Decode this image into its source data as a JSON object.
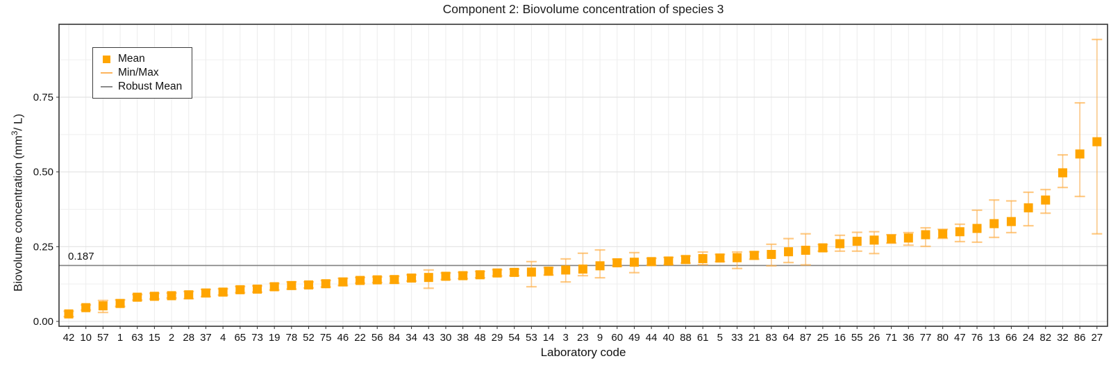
{
  "title": "Component 2: Biovolume concentration of species 3",
  "axes": {
    "x_label": "Laboratory code",
    "y_label_prefix": "Biovolume concentration  (mm",
    "y_label_sup": "3",
    "y_label_suffix": "/ L)",
    "y_tick_labels": [
      "0.00",
      "0.25",
      "0.50",
      "0.75"
    ],
    "y_tick_values": [
      0,
      0.25,
      0.5,
      0.75
    ],
    "y_minor_values": [
      0.125,
      0.375,
      0.625,
      0.875
    ]
  },
  "legend": {
    "items": [
      {
        "label": "Mean",
        "type": "square",
        "color": "#FFA500"
      },
      {
        "label": "Min/Max",
        "type": "line",
        "color": "#FDB45C"
      },
      {
        "label": "Robust Mean",
        "type": "line",
        "color": "#8a8a8a"
      }
    ]
  },
  "robust_mean": {
    "value": 0.187,
    "label": "0.187"
  },
  "colors": {
    "mean_point": "#FFA500",
    "minmax_bar": "rgba(255,170,60,0.55)",
    "minmax_cap": "rgba(255,175,70,0.65)",
    "robust_line": "#808080",
    "grid_major": "#e3e3e3",
    "grid_minor": "#efefef",
    "grid_vertical": "#ececec",
    "panel_border": "#333333",
    "tick": "#333333",
    "text": "#111111"
  },
  "chart_data": {
    "type": "scatter",
    "title": "Component 2: Biovolume concentration of species 3",
    "xlabel": "Laboratory code",
    "ylabel": "Biovolume concentration (mm3/ L)",
    "ylim": [
      0,
      0.99
    ],
    "grid": true,
    "legend_position": "top-left",
    "robust_mean": 0.187,
    "categories": [
      "42",
      "10",
      "57",
      "1",
      "63",
      "15",
      "2",
      "28",
      "37",
      "4",
      "65",
      "73",
      "19",
      "78",
      "52",
      "75",
      "46",
      "22",
      "56",
      "84",
      "34",
      "43",
      "30",
      "38",
      "48",
      "29",
      "54",
      "53",
      "14",
      "3",
      "23",
      "9",
      "60",
      "49",
      "44",
      "40",
      "88",
      "61",
      "5",
      "33",
      "21",
      "83",
      "64",
      "87",
      "25",
      "16",
      "55",
      "26",
      "71",
      "36",
      "77",
      "80",
      "47",
      "76",
      "13",
      "66",
      "24",
      "82",
      "32",
      "86",
      "27"
    ],
    "series": [
      {
        "name": "Mean",
        "values": [
          0.025,
          0.046,
          0.052,
          0.06,
          0.081,
          0.084,
          0.086,
          0.089,
          0.095,
          0.098,
          0.106,
          0.108,
          0.116,
          0.12,
          0.122,
          0.126,
          0.132,
          0.137,
          0.139,
          0.14,
          0.145,
          0.147,
          0.151,
          0.153,
          0.156,
          0.162,
          0.164,
          0.165,
          0.168,
          0.172,
          0.175,
          0.186,
          0.196,
          0.198,
          0.2,
          0.202,
          0.207,
          0.21,
          0.212,
          0.213,
          0.221,
          0.224,
          0.233,
          0.238,
          0.246,
          0.26,
          0.268,
          0.272,
          0.276,
          0.279,
          0.29,
          0.293,
          0.3,
          0.311,
          0.327,
          0.334,
          0.38,
          0.406,
          0.497,
          0.56,
          0.601
        ]
      },
      {
        "name": "Min",
        "values": [
          0.016,
          0.038,
          0.03,
          0.05,
          0.071,
          0.075,
          0.078,
          0.076,
          0.083,
          0.088,
          0.096,
          0.098,
          0.105,
          0.108,
          0.112,
          0.115,
          0.12,
          0.128,
          0.13,
          0.128,
          0.135,
          0.111,
          0.14,
          0.143,
          0.146,
          0.152,
          0.153,
          0.116,
          0.155,
          0.132,
          0.153,
          0.146,
          0.185,
          0.163,
          0.188,
          0.19,
          0.195,
          0.19,
          0.2,
          0.177,
          0.208,
          0.186,
          0.197,
          0.189,
          0.235,
          0.235,
          0.235,
          0.227,
          0.262,
          0.255,
          0.251,
          0.278,
          0.267,
          0.265,
          0.281,
          0.297,
          0.32,
          0.362,
          0.448,
          0.418,
          0.293
        ]
      },
      {
        "name": "Max",
        "values": [
          0.034,
          0.055,
          0.07,
          0.072,
          0.09,
          0.094,
          0.095,
          0.1,
          0.107,
          0.109,
          0.117,
          0.119,
          0.127,
          0.132,
          0.132,
          0.137,
          0.144,
          0.147,
          0.149,
          0.151,
          0.156,
          0.172,
          0.162,
          0.164,
          0.167,
          0.173,
          0.175,
          0.2,
          0.18,
          0.209,
          0.228,
          0.239,
          0.208,
          0.23,
          0.211,
          0.214,
          0.219,
          0.232,
          0.224,
          0.232,
          0.233,
          0.258,
          0.277,
          0.293,
          0.257,
          0.288,
          0.298,
          0.3,
          0.29,
          0.297,
          0.313,
          0.308,
          0.325,
          0.372,
          0.406,
          0.403,
          0.432,
          0.441,
          0.557,
          0.731,
          0.943
        ]
      }
    ]
  }
}
